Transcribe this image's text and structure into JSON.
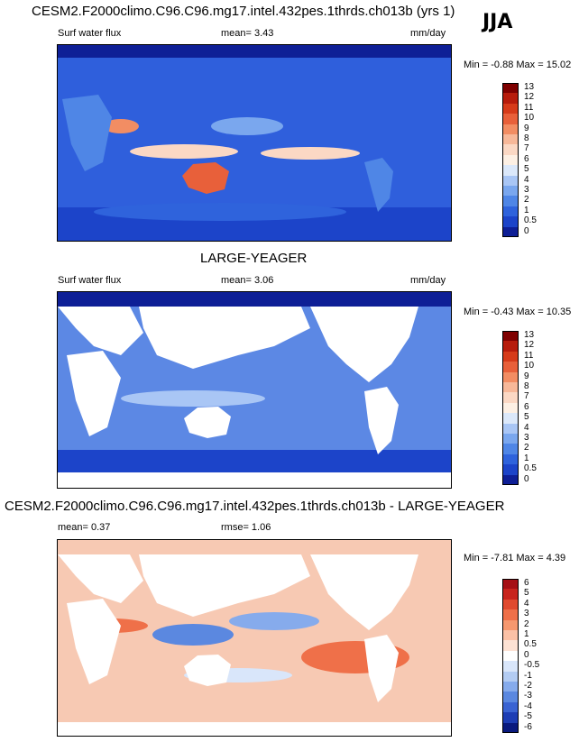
{
  "season": "JJA",
  "panels": [
    {
      "title": "CESM2.F2000climo.C96.C96.mg17.intel.432pes.1thrds.ch013b (yrs 1)",
      "left_label": "Surf water flux",
      "mid_label": "mean=   3.43",
      "right_label": "mm/day",
      "minmax": "Min =  -0.88 Max =  15.02",
      "base_color": "#2f5fdc",
      "cbar_labels": [
        "13",
        "12",
        "11",
        "10",
        "9",
        "8",
        "7",
        "6",
        "5",
        "4",
        "3",
        "2",
        "1",
        "0.5",
        "0"
      ],
      "cbar_colors": [
        "#7f0000",
        "#b71c0c",
        "#d63b1a",
        "#e8603a",
        "#f28d63",
        "#f7b899",
        "#fbd8c4",
        "#fdf0e4",
        "#dbe8fa",
        "#a9c6f5",
        "#7aa7ee",
        "#4f86e6",
        "#2f63dc",
        "#1c44c9",
        "#0e1f96"
      ]
    },
    {
      "title": "LARGE-YEAGER",
      "left_label": "Surf water flux",
      "mid_label": "mean=   3.06",
      "right_label": "mm/day",
      "minmax": "Min =  -0.43 Max =  10.35",
      "base_color": "#5c88e4",
      "cbar_labels": [
        "13",
        "12",
        "11",
        "10",
        "9",
        "8",
        "7",
        "6",
        "5",
        "4",
        "3",
        "2",
        "1",
        "0.5",
        "0"
      ],
      "cbar_colors": [
        "#7f0000",
        "#b71c0c",
        "#d63b1a",
        "#e8603a",
        "#f28d63",
        "#f7b899",
        "#fbd8c4",
        "#fdf0e4",
        "#dbe8fa",
        "#a9c6f5",
        "#7aa7ee",
        "#4f86e6",
        "#2f63dc",
        "#1c44c9",
        "#0e1f96"
      ]
    },
    {
      "title": "CESM2.F2000climo.C96.C96.mg17.intel.432pes.1thrds.ch013b - LARGE-YEAGER",
      "left_label": "mean=   0.37",
      "mid_label": "rmse=   1.06",
      "right_label": "",
      "minmax": "Min =  -7.81 Max =   4.39",
      "base_color": "#f7c9b3",
      "cbar_labels": [
        "6",
        "5",
        "4",
        "3",
        "2",
        "1",
        "0.5",
        "0",
        "-0.5",
        "-1",
        "-2",
        "-3",
        "-4",
        "-5",
        "-6"
      ],
      "cbar_colors": [
        "#a50f15",
        "#c8241d",
        "#e04a2f",
        "#ef7049",
        "#f6986f",
        "#fbc1a6",
        "#fde2d4",
        "#ffffff",
        "#d9e6fa",
        "#b3ccf3",
        "#86abec",
        "#5b88e0",
        "#3a63d2",
        "#1d3db4",
        "#0a1a7e"
      ]
    }
  ]
}
